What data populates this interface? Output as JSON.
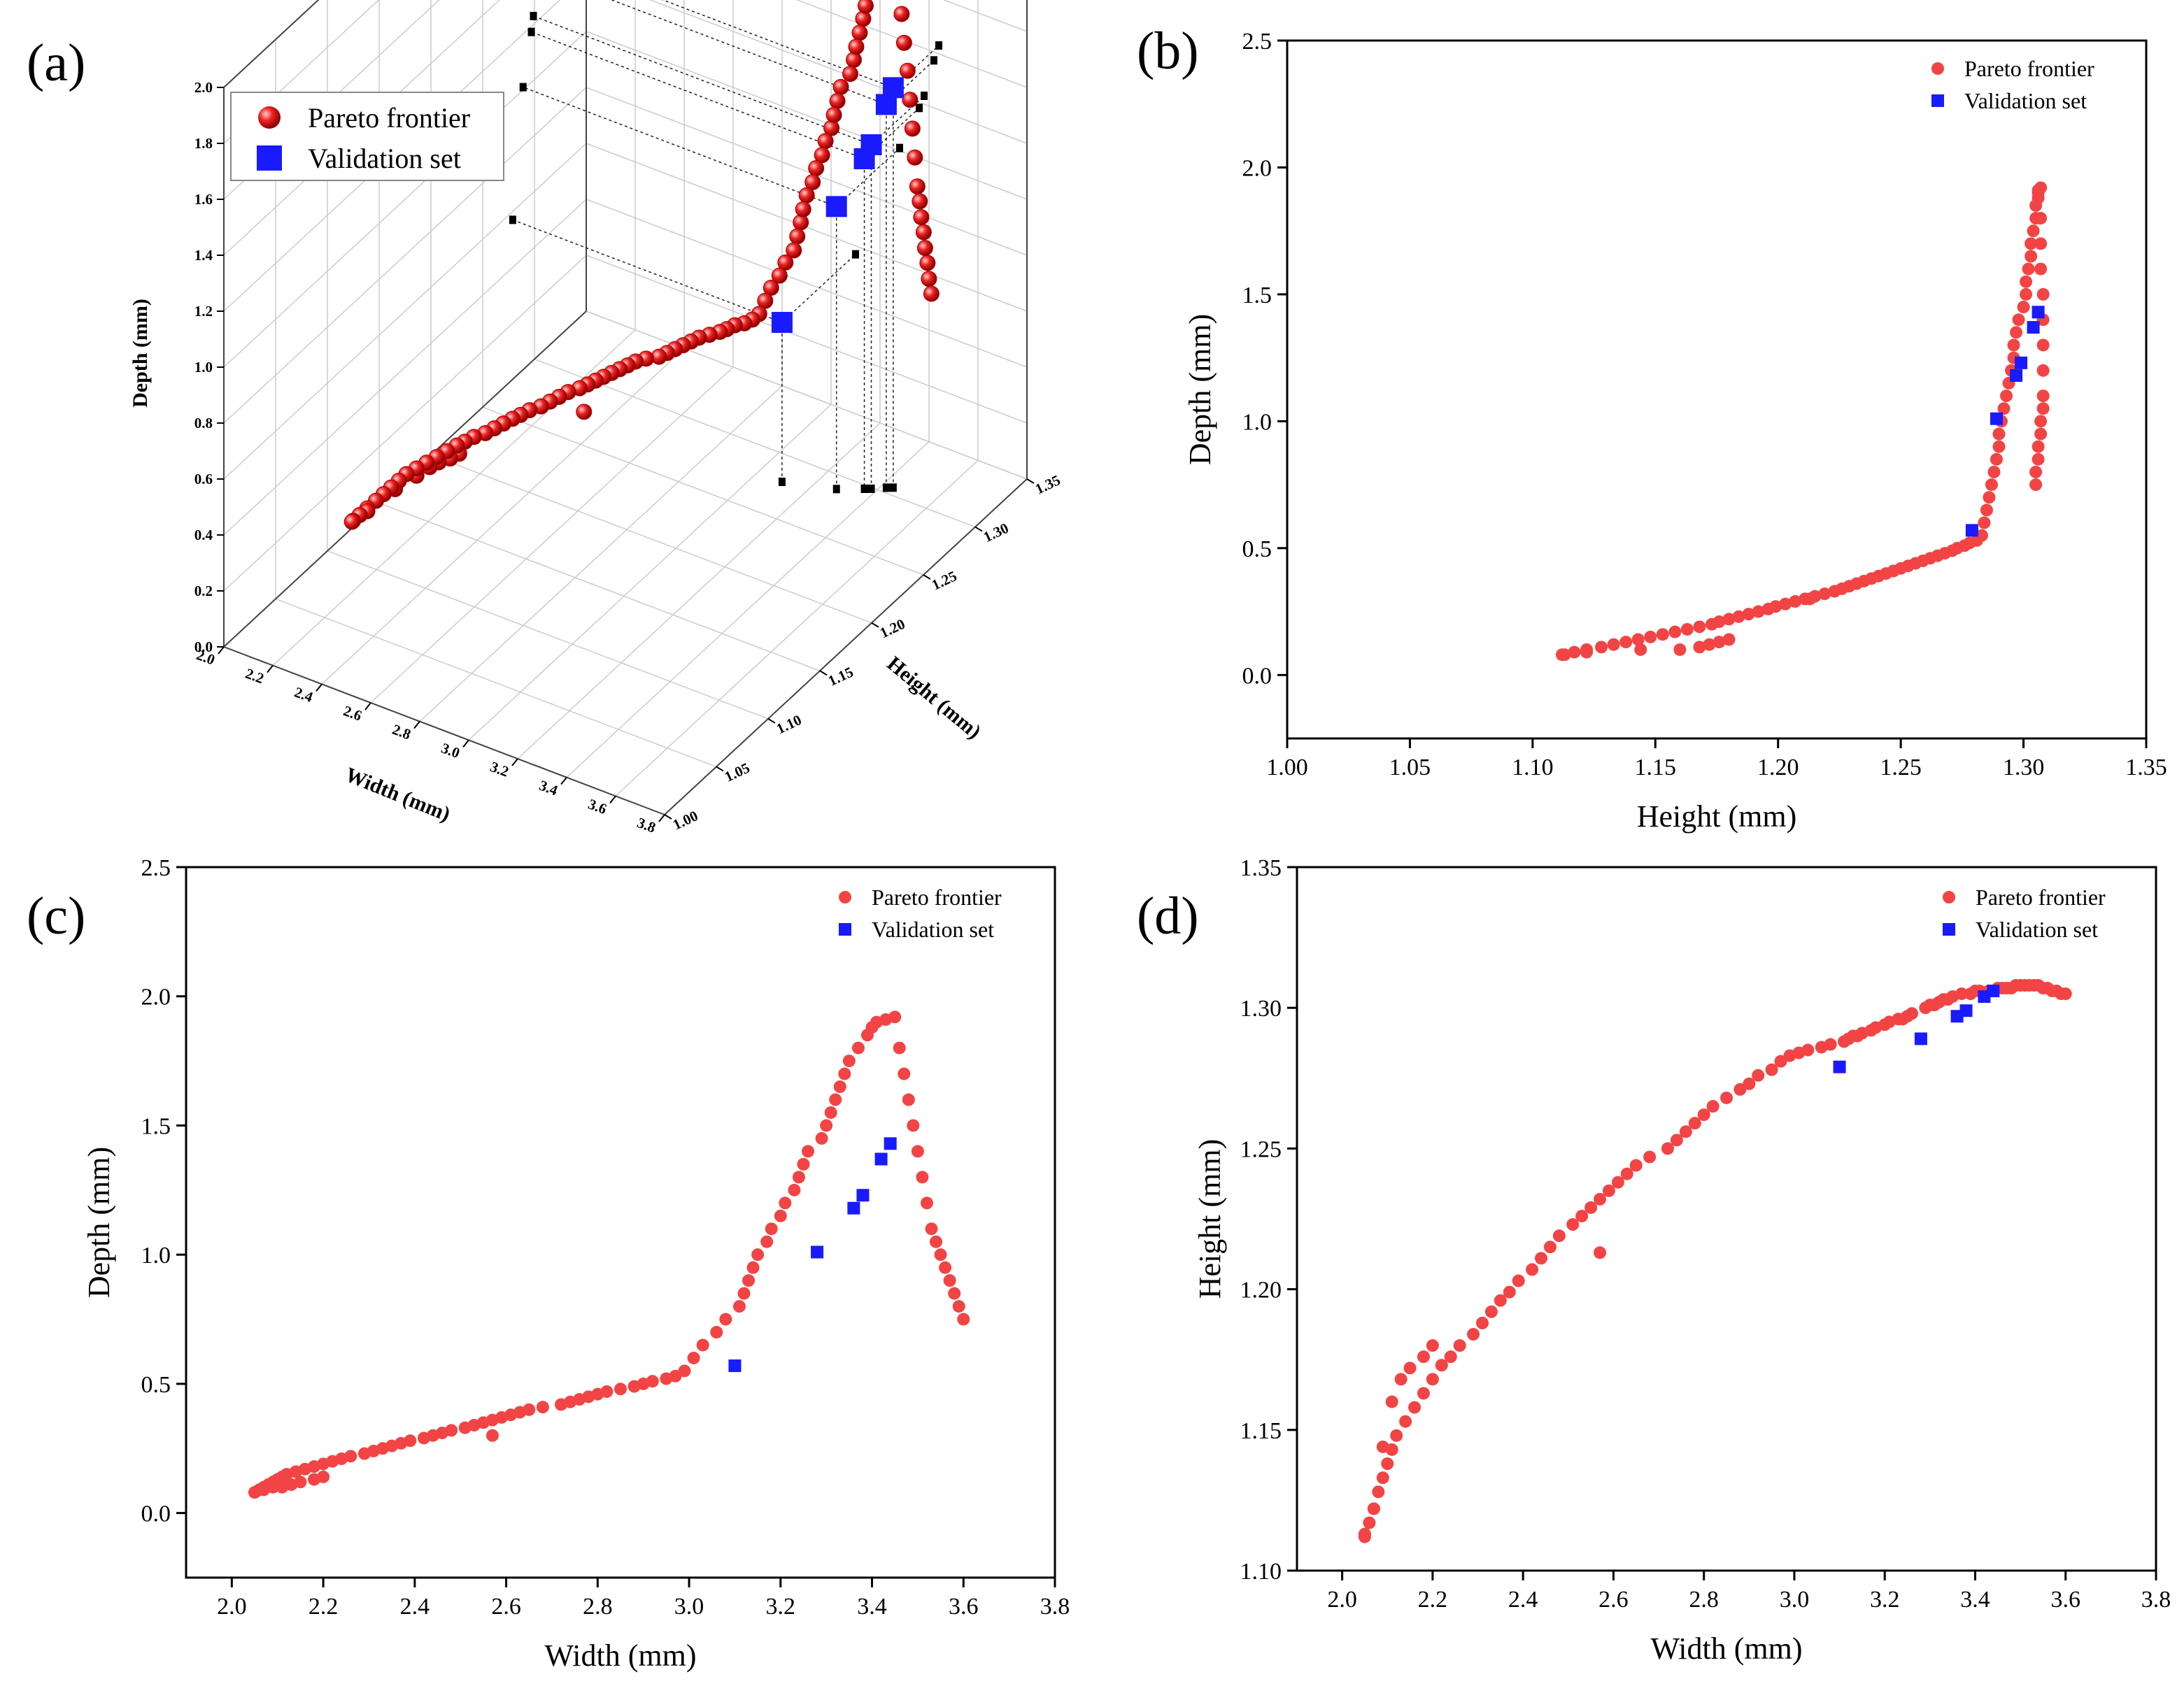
{
  "figure": {
    "panels": [
      "(a)",
      "(b)",
      "(c)",
      "(d)"
    ],
    "colors": {
      "pareto": "#f24444",
      "validation": "#1a1aff",
      "axis": "#000000",
      "grid": "#cccccc",
      "projection": "#222222"
    }
  },
  "chart_data": [
    {
      "panel": "(a)",
      "type": "scatter",
      "projection": "3d",
      "series": [
        {
          "name": "Pareto frontier",
          "points": "points_wdh (width, height, depth), from the 101-point frontier"
        },
        {
          "name": "Validation set",
          "points": [
            [
              3.1,
              1.279,
              0.57
            ],
            [
              3.28,
              1.289,
              1.01
            ],
            [
              3.36,
              1.297,
              1.18
            ],
            [
              3.38,
              1.299,
              1.23
            ],
            [
              3.42,
              1.304,
              1.37
            ],
            [
              3.44,
              1.306,
              1.43
            ]
          ]
        }
      ],
      "x": {
        "label": "Width (mm)",
        "lim": [
          2.0,
          3.8
        ],
        "ticks": [
          "2.0",
          "2.2",
          "2.4",
          "2.6",
          "2.8",
          "3.0",
          "3.2",
          "3.4",
          "3.6",
          "3.8"
        ]
      },
      "y": {
        "label": "Height (mm)",
        "lim": [
          1.0,
          1.35
        ],
        "ticks": [
          "1.00",
          "1.05",
          "1.10",
          "1.15",
          "1.20",
          "1.25",
          "1.30",
          "1.35"
        ]
      },
      "z": {
        "label": "Depth (mm)",
        "lim": [
          0.0,
          2.0
        ],
        "ticks": [
          "0.0",
          "0.2",
          "0.4",
          "0.6",
          "0.8",
          "1.0",
          "1.2",
          "1.4",
          "1.6",
          "1.8",
          "2.0"
        ]
      }
    },
    {
      "panel": "(b)",
      "type": "scatter",
      "xlabel": "Height (mm)",
      "ylabel": "Depth (mm)",
      "xlim": [
        1.0,
        1.35
      ],
      "ylim": [
        -0.25,
        2.5
      ],
      "xticks": [
        "1.00",
        "1.05",
        "1.10",
        "1.15",
        "1.20",
        "1.25",
        "1.30",
        "1.35"
      ],
      "yticks": [
        "0.0",
        "0.5",
        "1.0",
        "1.5",
        "2.0",
        "2.5"
      ],
      "series": [
        {
          "name": "Pareto frontier",
          "x": "height",
          "y": "depth"
        },
        {
          "name": "Validation set",
          "x": [
            1.279,
            1.289,
            1.297,
            1.299,
            1.304,
            1.306
          ],
          "y": [
            0.57,
            1.01,
            1.18,
            1.23,
            1.37,
            1.43
          ]
        }
      ]
    },
    {
      "panel": "(c)",
      "type": "scatter",
      "xlabel": "Width (mm)",
      "ylabel": "Depth (mm)",
      "xlim": [
        1.9,
        3.8
      ],
      "ylim": [
        -0.25,
        2.5
      ],
      "xticks": [
        "2.0",
        "2.2",
        "2.4",
        "2.6",
        "2.8",
        "3.0",
        "3.2",
        "3.4",
        "3.6",
        "3.8"
      ],
      "yticks": [
        "0.0",
        "0.5",
        "1.0",
        "1.5",
        "2.0",
        "2.5"
      ],
      "series": [
        {
          "name": "Pareto frontier",
          "x": "width",
          "y": "depth"
        },
        {
          "name": "Validation set",
          "x": [
            3.1,
            3.28,
            3.36,
            3.38,
            3.42,
            3.44
          ],
          "y": [
            0.57,
            1.01,
            1.18,
            1.23,
            1.37,
            1.43
          ]
        }
      ]
    },
    {
      "panel": "(d)",
      "type": "scatter",
      "xlabel": "Width (mm)",
      "ylabel": "Height (mm)",
      "xlim": [
        1.9,
        3.8
      ],
      "ylim": [
        1.1,
        1.35
      ],
      "xticks": [
        "2.0",
        "2.2",
        "2.4",
        "2.6",
        "2.8",
        "3.0",
        "3.2",
        "3.4",
        "3.6",
        "3.8"
      ],
      "yticks": [
        "1.10",
        "1.15",
        "1.20",
        "1.25",
        "1.30",
        "1.35"
      ],
      "series": [
        {
          "name": "Pareto frontier",
          "x": "width",
          "y": "height"
        },
        {
          "name": "Validation set",
          "x": [
            3.1,
            3.28,
            3.36,
            3.38,
            3.42,
            3.44
          ],
          "y": [
            1.279,
            1.289,
            1.297,
            1.299,
            1.304,
            1.306
          ]
        }
      ]
    }
  ],
  "frontier": {
    "width": [
      2.05,
      2.06,
      2.07,
      2.08,
      2.09,
      2.1,
      2.11,
      2.12,
      2.14,
      2.16,
      2.18,
      2.2,
      2.22,
      2.24,
      2.26,
      2.29,
      2.31,
      2.33,
      2.35,
      2.37,
      2.39,
      2.42,
      2.44,
      2.46,
      2.48,
      2.51,
      2.53,
      2.55,
      2.57,
      2.59,
      2.61,
      2.63,
      2.65,
      2.68,
      2.72,
      2.74,
      2.76,
      2.78,
      2.8,
      2.82,
      2.85,
      2.88,
      2.9,
      2.92,
      2.95,
      2.97,
      2.99,
      3.01,
      3.03,
      3.06,
      3.08,
      3.11,
      3.12,
      3.13,
      3.14,
      3.15,
      3.17,
      3.18,
      3.2,
      3.21,
      3.23,
      3.24,
      3.25,
      3.26,
      3.29,
      3.3,
      3.31,
      3.32,
      3.33,
      3.34,
      3.35,
      3.37,
      3.39,
      3.4,
      3.41,
      3.43,
      3.45,
      3.46,
      3.47,
      3.48,
      3.49,
      3.5,
      3.51,
      3.52,
      3.53,
      3.54,
      3.55,
      3.56,
      3.57,
      3.58,
      3.59,
      3.6,
      2.05,
      2.07,
      2.09,
      2.11,
      2.13,
      2.15,
      2.18,
      2.2,
      2.57
    ],
    "height": [
      1.112,
      1.117,
      1.122,
      1.128,
      1.133,
      1.138,
      1.143,
      1.148,
      1.153,
      1.158,
      1.163,
      1.168,
      1.173,
      1.176,
      1.18,
      1.184,
      1.188,
      1.192,
      1.196,
      1.199,
      1.203,
      1.207,
      1.211,
      1.215,
      1.219,
      1.223,
      1.226,
      1.229,
      1.232,
      1.235,
      1.238,
      1.241,
      1.244,
      1.247,
      1.25,
      1.253,
      1.256,
      1.259,
      1.262,
      1.265,
      1.268,
      1.271,
      1.273,
      1.276,
      1.278,
      1.281,
      1.283,
      1.284,
      1.285,
      1.286,
      1.287,
      1.288,
      1.289,
      1.29,
      1.29,
      1.291,
      1.292,
      1.293,
      1.294,
      1.295,
      1.296,
      1.296,
      1.297,
      1.298,
      1.3,
      1.301,
      1.301,
      1.302,
      1.303,
      1.303,
      1.304,
      1.305,
      1.305,
      1.306,
      1.306,
      1.306,
      1.307,
      1.307,
      1.307,
      1.307,
      1.308,
      1.308,
      1.308,
      1.308,
      1.308,
      1.308,
      1.307,
      1.307,
      1.306,
      1.306,
      1.305,
      1.305,
      1.113,
      1.122,
      1.144,
      1.16,
      1.168,
      1.172,
      1.176,
      1.18,
      1.213
    ],
    "depth": [
      0.08,
      0.09,
      0.1,
      0.11,
      0.12,
      0.13,
      0.14,
      0.15,
      0.16,
      0.17,
      0.18,
      0.19,
      0.2,
      0.21,
      0.22,
      0.23,
      0.24,
      0.25,
      0.26,
      0.27,
      0.28,
      0.29,
      0.3,
      0.31,
      0.32,
      0.33,
      0.34,
      0.35,
      0.36,
      0.37,
      0.38,
      0.39,
      0.4,
      0.41,
      0.42,
      0.43,
      0.44,
      0.45,
      0.46,
      0.47,
      0.48,
      0.49,
      0.5,
      0.51,
      0.52,
      0.53,
      0.55,
      0.6,
      0.65,
      0.7,
      0.75,
      0.8,
      0.85,
      0.9,
      0.95,
      1.0,
      1.05,
      1.1,
      1.15,
      1.2,
      1.25,
      1.3,
      1.35,
      1.4,
      1.45,
      1.5,
      1.55,
      1.6,
      1.65,
      1.7,
      1.75,
      1.8,
      1.85,
      1.88,
      1.9,
      1.91,
      1.92,
      1.8,
      1.7,
      1.6,
      1.5,
      1.4,
      1.3,
      1.2,
      1.1,
      1.05,
      1.0,
      0.95,
      0.9,
      0.85,
      0.8,
      0.75,
      0.08,
      0.09,
      0.1,
      0.1,
      0.11,
      0.12,
      0.13,
      0.14,
      0.3
    ]
  },
  "legend": {
    "pareto_label": "Pareto frontier",
    "validation_label": "Validation set"
  }
}
